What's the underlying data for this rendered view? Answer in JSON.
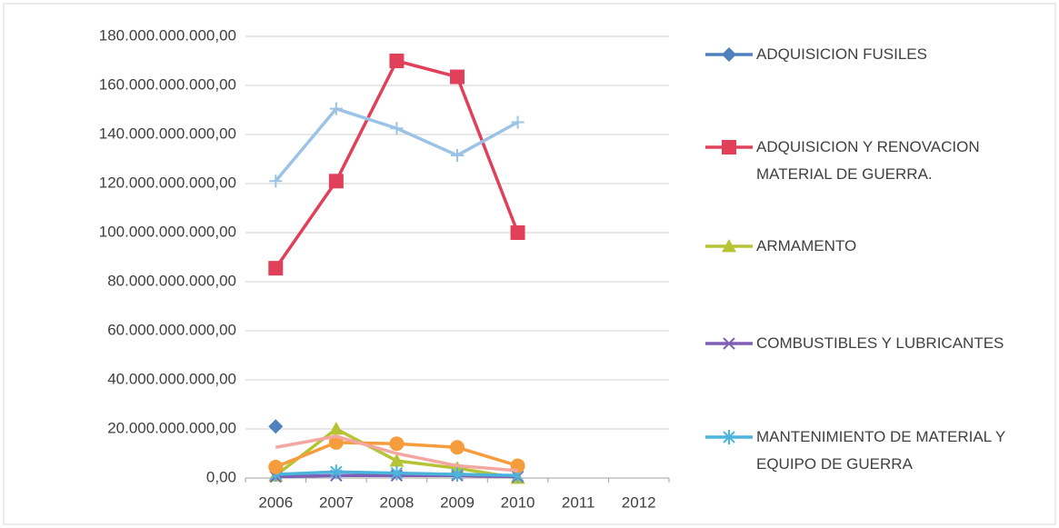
{
  "chart_data": {
    "type": "line",
    "categories": [
      "2006",
      "2007",
      "2008",
      "2009",
      "2010",
      "2011",
      "2012"
    ],
    "ylim": [
      0,
      180000000000
    ],
    "yticks": [
      {
        "value": 0,
        "label": "0,00"
      },
      {
        "value": 20000000000,
        "label": "20.000.000.000,00"
      },
      {
        "value": 40000000000,
        "label": "40.000.000.000,00"
      },
      {
        "value": 60000000000,
        "label": "60.000.000.000,00"
      },
      {
        "value": 80000000000,
        "label": "80.000.000.000,00"
      },
      {
        "value": 100000000000,
        "label": "100.000.000.000,00"
      },
      {
        "value": 120000000000,
        "label": "120.000.000.000,00"
      },
      {
        "value": 140000000000,
        "label": "140.000.000.000,00"
      },
      {
        "value": 160000000000,
        "label": "160.000.000.000,00"
      },
      {
        "value": 180000000000,
        "label": "180.000.000.000,00"
      }
    ],
    "grid": true,
    "legend": "right",
    "series": [
      {
        "name": "ADQUISICION FUSILES",
        "color": "#4f81bd",
        "marker": "diamond",
        "values": [
          21000000000,
          null,
          null,
          null,
          null,
          null,
          null
        ]
      },
      {
        "name": "ADQUISICION Y RENOVACION MATERIAL DE GUERRA.",
        "color": "#e0405a",
        "marker": "square",
        "values": [
          85500000000,
          121000000000,
          170000000000,
          163500000000,
          100000000000,
          null,
          null
        ]
      },
      {
        "name": "ARMAMENTO",
        "color": "#b5c335",
        "marker": "triangle",
        "values": [
          1000000000,
          20000000000,
          7000000000,
          4000000000,
          0,
          null,
          null
        ]
      },
      {
        "name": "COMBUSTIBLES Y LUBRICANTES",
        "color": "#7f5fb5",
        "marker": "x",
        "values": [
          500000000,
          1000000000,
          1000000000,
          1000000000,
          500000000,
          null,
          null
        ]
      },
      {
        "name": "MANTENIMIENTO DE MATERIAL Y EQUIPO DE GUERRA",
        "color": "#4bb4dd",
        "marker": "star",
        "values": [
          1500000000,
          2500000000,
          2000000000,
          1500000000,
          1000000000,
          null,
          null
        ]
      },
      {
        "color": "#9cc3e6",
        "marker": "plus",
        "values": [
          121000000000,
          150500000000,
          142500000000,
          131500000000,
          145000000000,
          null,
          null
        ]
      },
      {
        "color": "#f59d3d",
        "marker": "circle",
        "values": [
          4500000000,
          14500000000,
          14000000000,
          12500000000,
          5000000000,
          null,
          null
        ]
      },
      {
        "color": "#f4a7a0",
        "marker": "none",
        "values": [
          12500000000,
          17000000000,
          10000000000,
          5000000000,
          3000000000,
          null,
          null
        ]
      }
    ]
  }
}
